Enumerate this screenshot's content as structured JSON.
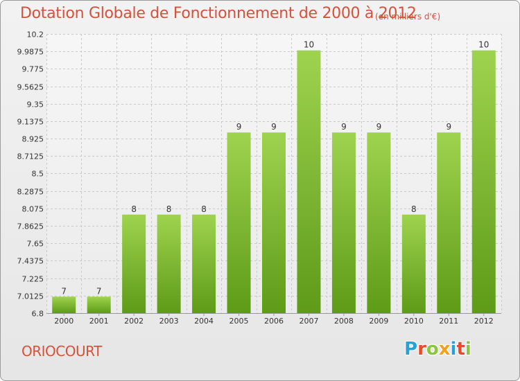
{
  "header": {
    "title": "Dotation Globale de Fonctionnement de 2000 à 2012",
    "unit": "(en milliers d'€)"
  },
  "footer": {
    "commune": "ORIOCOURT",
    "logo_text": "Proxiti",
    "logo_letters": [
      {
        "char": "P",
        "color": "#2a9fd8"
      },
      {
        "char": "r",
        "color": "#e84a2a"
      },
      {
        "char": "o",
        "color": "#8cc63e"
      },
      {
        "char": "x",
        "color": "#f4a01a"
      },
      {
        "char": "i",
        "color": "#2a9fd8"
      },
      {
        "char": "t",
        "color": "#e84a2a"
      },
      {
        "char": "i",
        "color": "#8cc63e"
      }
    ]
  },
  "colors": {
    "title": "#d6503a",
    "bar_light": "#9ed34f",
    "bar_dark": "#5e9b17",
    "grid": "#c8c8c8",
    "axis_text": "#333333"
  },
  "chart_data": {
    "type": "bar",
    "categories": [
      "2000",
      "2001",
      "2002",
      "2003",
      "2004",
      "2005",
      "2006",
      "2007",
      "2008",
      "2009",
      "2010",
      "2011",
      "2012"
    ],
    "values": [
      7,
      7,
      8,
      8,
      8,
      9,
      9,
      10,
      9,
      9,
      8,
      9,
      10
    ],
    "value_labels": [
      "7",
      "7",
      "8",
      "8",
      "8",
      "9",
      "9",
      "10",
      "9",
      "9",
      "8",
      "9",
      "10"
    ],
    "ylim": [
      6.8,
      10.2
    ],
    "yticks": [
      6.8,
      7.0125,
      7.225,
      7.4375,
      7.65,
      7.8625,
      8.075,
      8.2875,
      8.5,
      8.7125,
      8.925,
      9.1375,
      9.35,
      9.5625,
      9.775,
      9.9875,
      10.2
    ],
    "ytick_labels": [
      "6.8",
      "7.0125",
      "7.225",
      "7.4375",
      "7.65",
      "7.8625",
      "8.075",
      "8.2875",
      "8.5",
      "8.7125",
      "8.925",
      "9.1375",
      "9.35",
      "9.5625",
      "9.775",
      "9.9875",
      "10.2"
    ],
    "grid": true
  }
}
